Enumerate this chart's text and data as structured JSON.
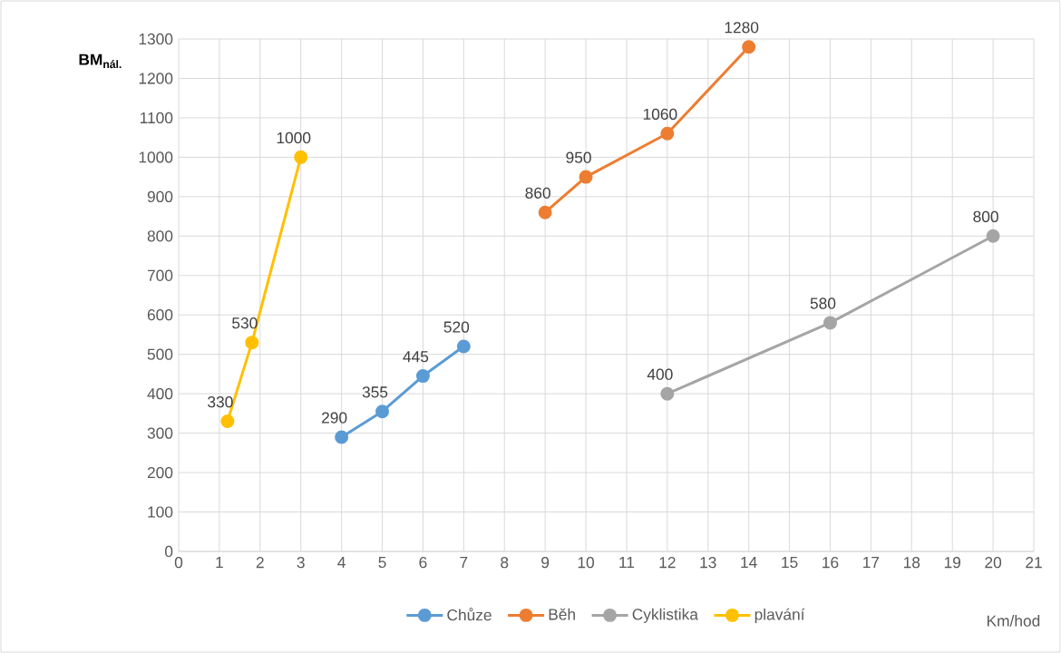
{
  "chart_data": {
    "type": "line",
    "ylabel": "BM$_{nál.}$",
    "xlabel": "Km/hod",
    "xlim": [
      0,
      21
    ],
    "xticks": [
      0,
      1,
      2,
      3,
      4,
      5,
      6,
      7,
      8,
      9,
      10,
      11,
      12,
      13,
      14,
      15,
      16,
      17,
      18,
      19,
      20,
      21
    ],
    "ylim": [
      0,
      1300
    ],
    "yticks": [
      0,
      100,
      200,
      300,
      400,
      500,
      600,
      700,
      800,
      900,
      1000,
      1100,
      1200,
      1300
    ],
    "grid": true,
    "legend": "bottom",
    "marker": "circle",
    "line_style": "solid",
    "data_labels": true,
    "series": [
      {
        "name": "Chůze",
        "color": "#5b9bd5",
        "x": [
          4,
          5,
          6,
          7
        ],
        "values": [
          290,
          355,
          445,
          520
        ]
      },
      {
        "name": "Běh",
        "color": "#ed7d31",
        "x": [
          9,
          10,
          12,
          14
        ],
        "values": [
          860,
          950,
          1060,
          1280
        ]
      },
      {
        "name": "Cyklistika",
        "color": "#a5a5a5",
        "x": [
          12,
          16,
          20
        ],
        "values": [
          400,
          580,
          800
        ]
      },
      {
        "name": "plavání",
        "color": "#ffc000",
        "x": [
          1.2,
          1.8,
          3
        ],
        "values": [
          330,
          530,
          1000
        ]
      }
    ]
  }
}
